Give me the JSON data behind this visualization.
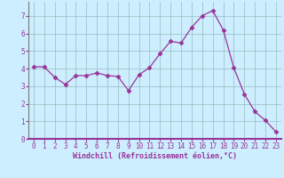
{
  "x": [
    0,
    1,
    2,
    3,
    4,
    5,
    6,
    7,
    8,
    9,
    10,
    11,
    12,
    13,
    14,
    15,
    16,
    17,
    18,
    19,
    20,
    21,
    22,
    23
  ],
  "y": [
    4.1,
    4.1,
    3.5,
    3.1,
    3.6,
    3.6,
    3.75,
    3.6,
    3.55,
    2.75,
    3.65,
    4.05,
    4.85,
    5.55,
    5.45,
    6.35,
    7.0,
    7.3,
    6.2,
    4.05,
    2.55,
    1.55,
    1.05,
    0.4
  ],
  "line_color": "#993399",
  "marker": "D",
  "marker_size": 2.5,
  "bg_color": "#cceeff",
  "grid_color": "#99bbbb",
  "xlabel": "Windchill (Refroidissement éolien,°C)",
  "xlabel_color": "#993399",
  "tick_color": "#993399",
  "xlim": [
    -0.5,
    23.5
  ],
  "ylim": [
    0,
    7.8
  ],
  "yticks": [
    0,
    1,
    2,
    3,
    4,
    5,
    6,
    7
  ],
  "xticks": [
    0,
    1,
    2,
    3,
    4,
    5,
    6,
    7,
    8,
    9,
    10,
    11,
    12,
    13,
    14,
    15,
    16,
    17,
    18,
    19,
    20,
    21,
    22,
    23
  ],
  "tick_fontsize": 5.5,
  "xlabel_fontsize": 6.0,
  "ylabel_fontsize": 6.0
}
